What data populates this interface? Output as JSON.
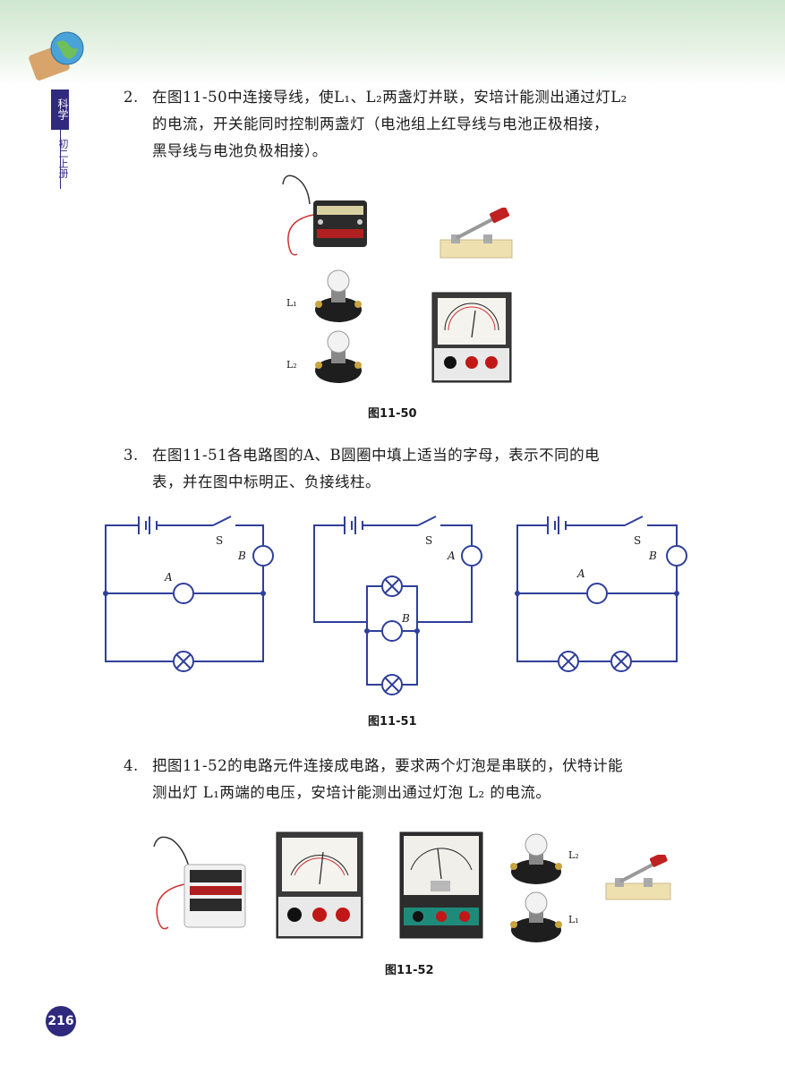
{
  "side_tab": {
    "subject": "科学",
    "grade": "初二上册"
  },
  "questions": [
    {
      "number": "2.",
      "lines": [
        "在图11-50中连接导线，使L₁、L₂两盏灯并联，安培计能测出通过灯L₂",
        "的电流，开关能同时控制两盏灯（电池组上红导线与电池正极相接，",
        "黑导线与电池负极相接）。"
      ]
    },
    {
      "number": "3.",
      "lines": [
        "在图11-51各电路图的A、B圆圈中填上适当的字母，表示不同的电",
        "表，并在图中标明正、负接线柱。"
      ]
    },
    {
      "number": "4.",
      "lines": [
        "把图11-52的电路元件连接成电路，要求两个灯泡是串联的，伏特计能",
        "测出灯 L₁两端的电压，安培计能测出通过灯泡 L₂ 的电流。"
      ]
    }
  ],
  "figures": {
    "fig50": {
      "caption": "图11-50",
      "labels": {
        "l1": "L₁",
        "l2": "L₂"
      }
    },
    "fig51": {
      "caption": "图11-51",
      "circuits": [
        {
          "switch": "S",
          "meter_top": "B",
          "meter_mid": "A"
        },
        {
          "switch": "S",
          "meter_top": "A",
          "meter_mid": "B"
        },
        {
          "switch": "S",
          "meter_top": "B",
          "meter_mid": "A"
        }
      ]
    },
    "fig52": {
      "caption": "图11-52",
      "labels": {
        "l2": "L₂",
        "l1": "L₁"
      }
    }
  },
  "page_number": "216"
}
